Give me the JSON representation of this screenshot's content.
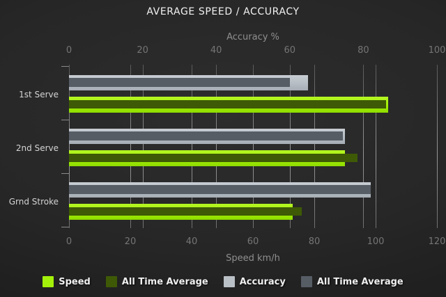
{
  "title": "AVERAGE SPEED / ACCURACY",
  "chart_data": {
    "type": "bar",
    "orientation": "horizontal",
    "grid": true,
    "categories": [
      "1st Serve",
      "2nd Serve",
      "Grnd Stroke"
    ],
    "axes": {
      "top": {
        "label": "Accuracy %",
        "min": 0,
        "max": 100,
        "ticks": [
          0,
          20,
          40,
          60,
          80,
          100
        ]
      },
      "bottom": {
        "label": "Speed km/h",
        "min": 0,
        "max": 120,
        "ticks": [
          0,
          20,
          40,
          60,
          80,
          100,
          120
        ]
      }
    },
    "series": [
      {
        "name": "Speed",
        "role": "outer-speed",
        "axis": "bottom",
        "color": "#a3ef07",
        "values": [
          104,
          90,
          73
        ]
      },
      {
        "name": "All Time Average",
        "role": "inner-speed-ata",
        "axis": "bottom",
        "color": "#3e5a06",
        "values": [
          103.5,
          94,
          76
        ]
      },
      {
        "name": "Accuracy",
        "role": "outer-accuracy",
        "axis": "top",
        "color": "#b9c0c6",
        "values": [
          65,
          75,
          82
        ]
      },
      {
        "name": "All Time Average",
        "role": "inner-accuracy-ata",
        "axis": "top",
        "color": "#565d65",
        "values": [
          60,
          74.5,
          82
        ]
      }
    ],
    "legend": [
      {
        "label": "Speed",
        "color": "#a3f00a"
      },
      {
        "label": "All Time Average",
        "color": "#3e5a06"
      },
      {
        "label": "Accuracy",
        "color": "#b9c0c6"
      },
      {
        "label": "All Time Average",
        "color": "#565d65"
      }
    ],
    "legend_position": "bottom"
  }
}
